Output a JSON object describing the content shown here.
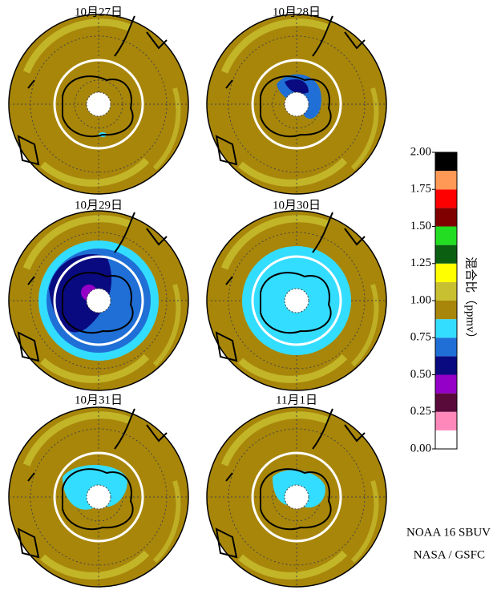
{
  "figure": {
    "panels": [
      {
        "title": "10月27日"
      },
      {
        "title": "10月28日"
      },
      {
        "title": "10月29日"
      },
      {
        "title": "10月30日"
      },
      {
        "title": "10月31日"
      },
      {
        "title": "11月1日"
      }
    ],
    "colorbar": {
      "label": "混合比（ppmv）",
      "lim": [
        0,
        2
      ],
      "colors": [
        "#ffffff",
        "#ff88bb",
        "#5a0a3a",
        "#9400c8",
        "#0a0a80",
        "#1f6fd6",
        "#33ddff",
        "#a8860a",
        "#c8c030",
        "#ffff00",
        "#0a6010",
        "#22dd22",
        "#800000",
        "#ff0000",
        "#ff9955",
        "#000000"
      ],
      "ticks": [
        {
          "value": 0,
          "label": "0.00"
        },
        {
          "value": 0.25,
          "label": "0.25"
        },
        {
          "value": 0.5,
          "label": "0.50"
        },
        {
          "value": 0.75,
          "label": "0.75"
        },
        {
          "value": 1,
          "label": "1.00"
        },
        {
          "value": 1.25,
          "label": "1.25"
        },
        {
          "value": 1.5,
          "label": "1.50"
        },
        {
          "value": 1.75,
          "label": "1.75"
        },
        {
          "value": 2,
          "label": "2.00"
        }
      ]
    },
    "credits": [
      "NOAA 16 SBUV",
      "NASA / GSFC"
    ]
  }
}
